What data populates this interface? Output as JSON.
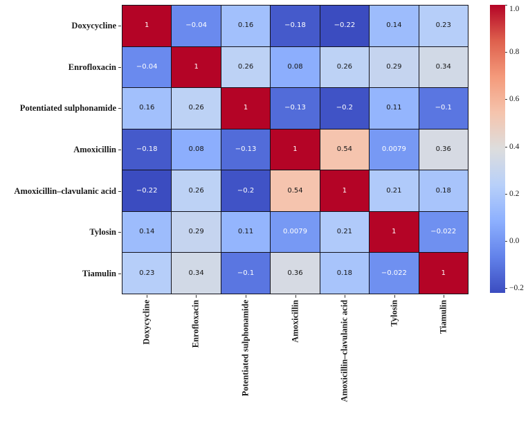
{
  "chart_data": {
    "type": "heatmap",
    "title": "",
    "categories": [
      "Doxycycline",
      "Enrofloxacin",
      "Potentiated sulphonamide",
      "Amoxicillin",
      "Amoxicillin–clavulanic acid",
      "Tylosin",
      "Tiamulin"
    ],
    "matrix": [
      [
        1,
        -0.04,
        0.16,
        -0.18,
        -0.22,
        0.14,
        0.23
      ],
      [
        -0.04,
        1,
        0.26,
        0.08,
        0.26,
        0.29,
        0.34
      ],
      [
        0.16,
        0.26,
        1,
        -0.13,
        -0.2,
        0.11,
        -0.1
      ],
      [
        -0.18,
        0.08,
        -0.13,
        1,
        0.54,
        0.0079,
        0.36
      ],
      [
        -0.22,
        0.26,
        -0.2,
        0.54,
        1,
        0.21,
        0.18
      ],
      [
        0.14,
        0.29,
        0.11,
        0.0079,
        0.21,
        1,
        -0.022
      ],
      [
        0.23,
        0.34,
        -0.1,
        0.36,
        0.18,
        -0.022,
        1
      ]
    ],
    "cell_labels": [
      [
        "1",
        "−0.04",
        "0.16",
        "−0.18",
        "−0.22",
        "0.14",
        "0.23"
      ],
      [
        "−0.04",
        "1",
        "0.26",
        "0.08",
        "0.26",
        "0.29",
        "0.34"
      ],
      [
        "0.16",
        "0.26",
        "1",
        "−0.13",
        "−0.2",
        "0.11",
        "−0.1"
      ],
      [
        "−0.18",
        "0.08",
        "−0.13",
        "1",
        "0.54",
        "0.0079",
        "0.36"
      ],
      [
        "−0.22",
        "0.26",
        "−0.2",
        "0.54",
        "1",
        "0.21",
        "0.18"
      ],
      [
        "0.14",
        "0.29",
        "0.11",
        "0.0079",
        "0.21",
        "1",
        "−0.022"
      ],
      [
        "0.23",
        "0.34",
        "−0.1",
        "0.36",
        "0.18",
        "−0.022",
        "1"
      ]
    ],
    "vmin": -0.22,
    "vmax": 1.0,
    "colormap": {
      "name": "coolwarm",
      "anchors": [
        "#3B4CC0",
        "#6282EA",
        "#8DB0FE",
        "#B8D0F9",
        "#DDDDDD",
        "#F5C4AD",
        "#F49A7B",
        "#DE604D",
        "#B40426"
      ]
    },
    "colorbar": {
      "ticks": [
        {
          "label": "1.0",
          "value": 1.0
        },
        {
          "label": "0.8",
          "value": 0.8
        },
        {
          "label": "0.6",
          "value": 0.6
        },
        {
          "label": "0.4",
          "value": 0.4
        },
        {
          "label": "0.2",
          "value": 0.2
        },
        {
          "label": "0.0",
          "value": 0.0
        },
        {
          "label": "−0.2",
          "value": -0.2
        }
      ]
    },
    "annotation_text_dark": "#151515",
    "annotation_text_light": "#ffffff",
    "grid_line_color": "#10101a",
    "legend_position": "right",
    "grid": "on"
  }
}
